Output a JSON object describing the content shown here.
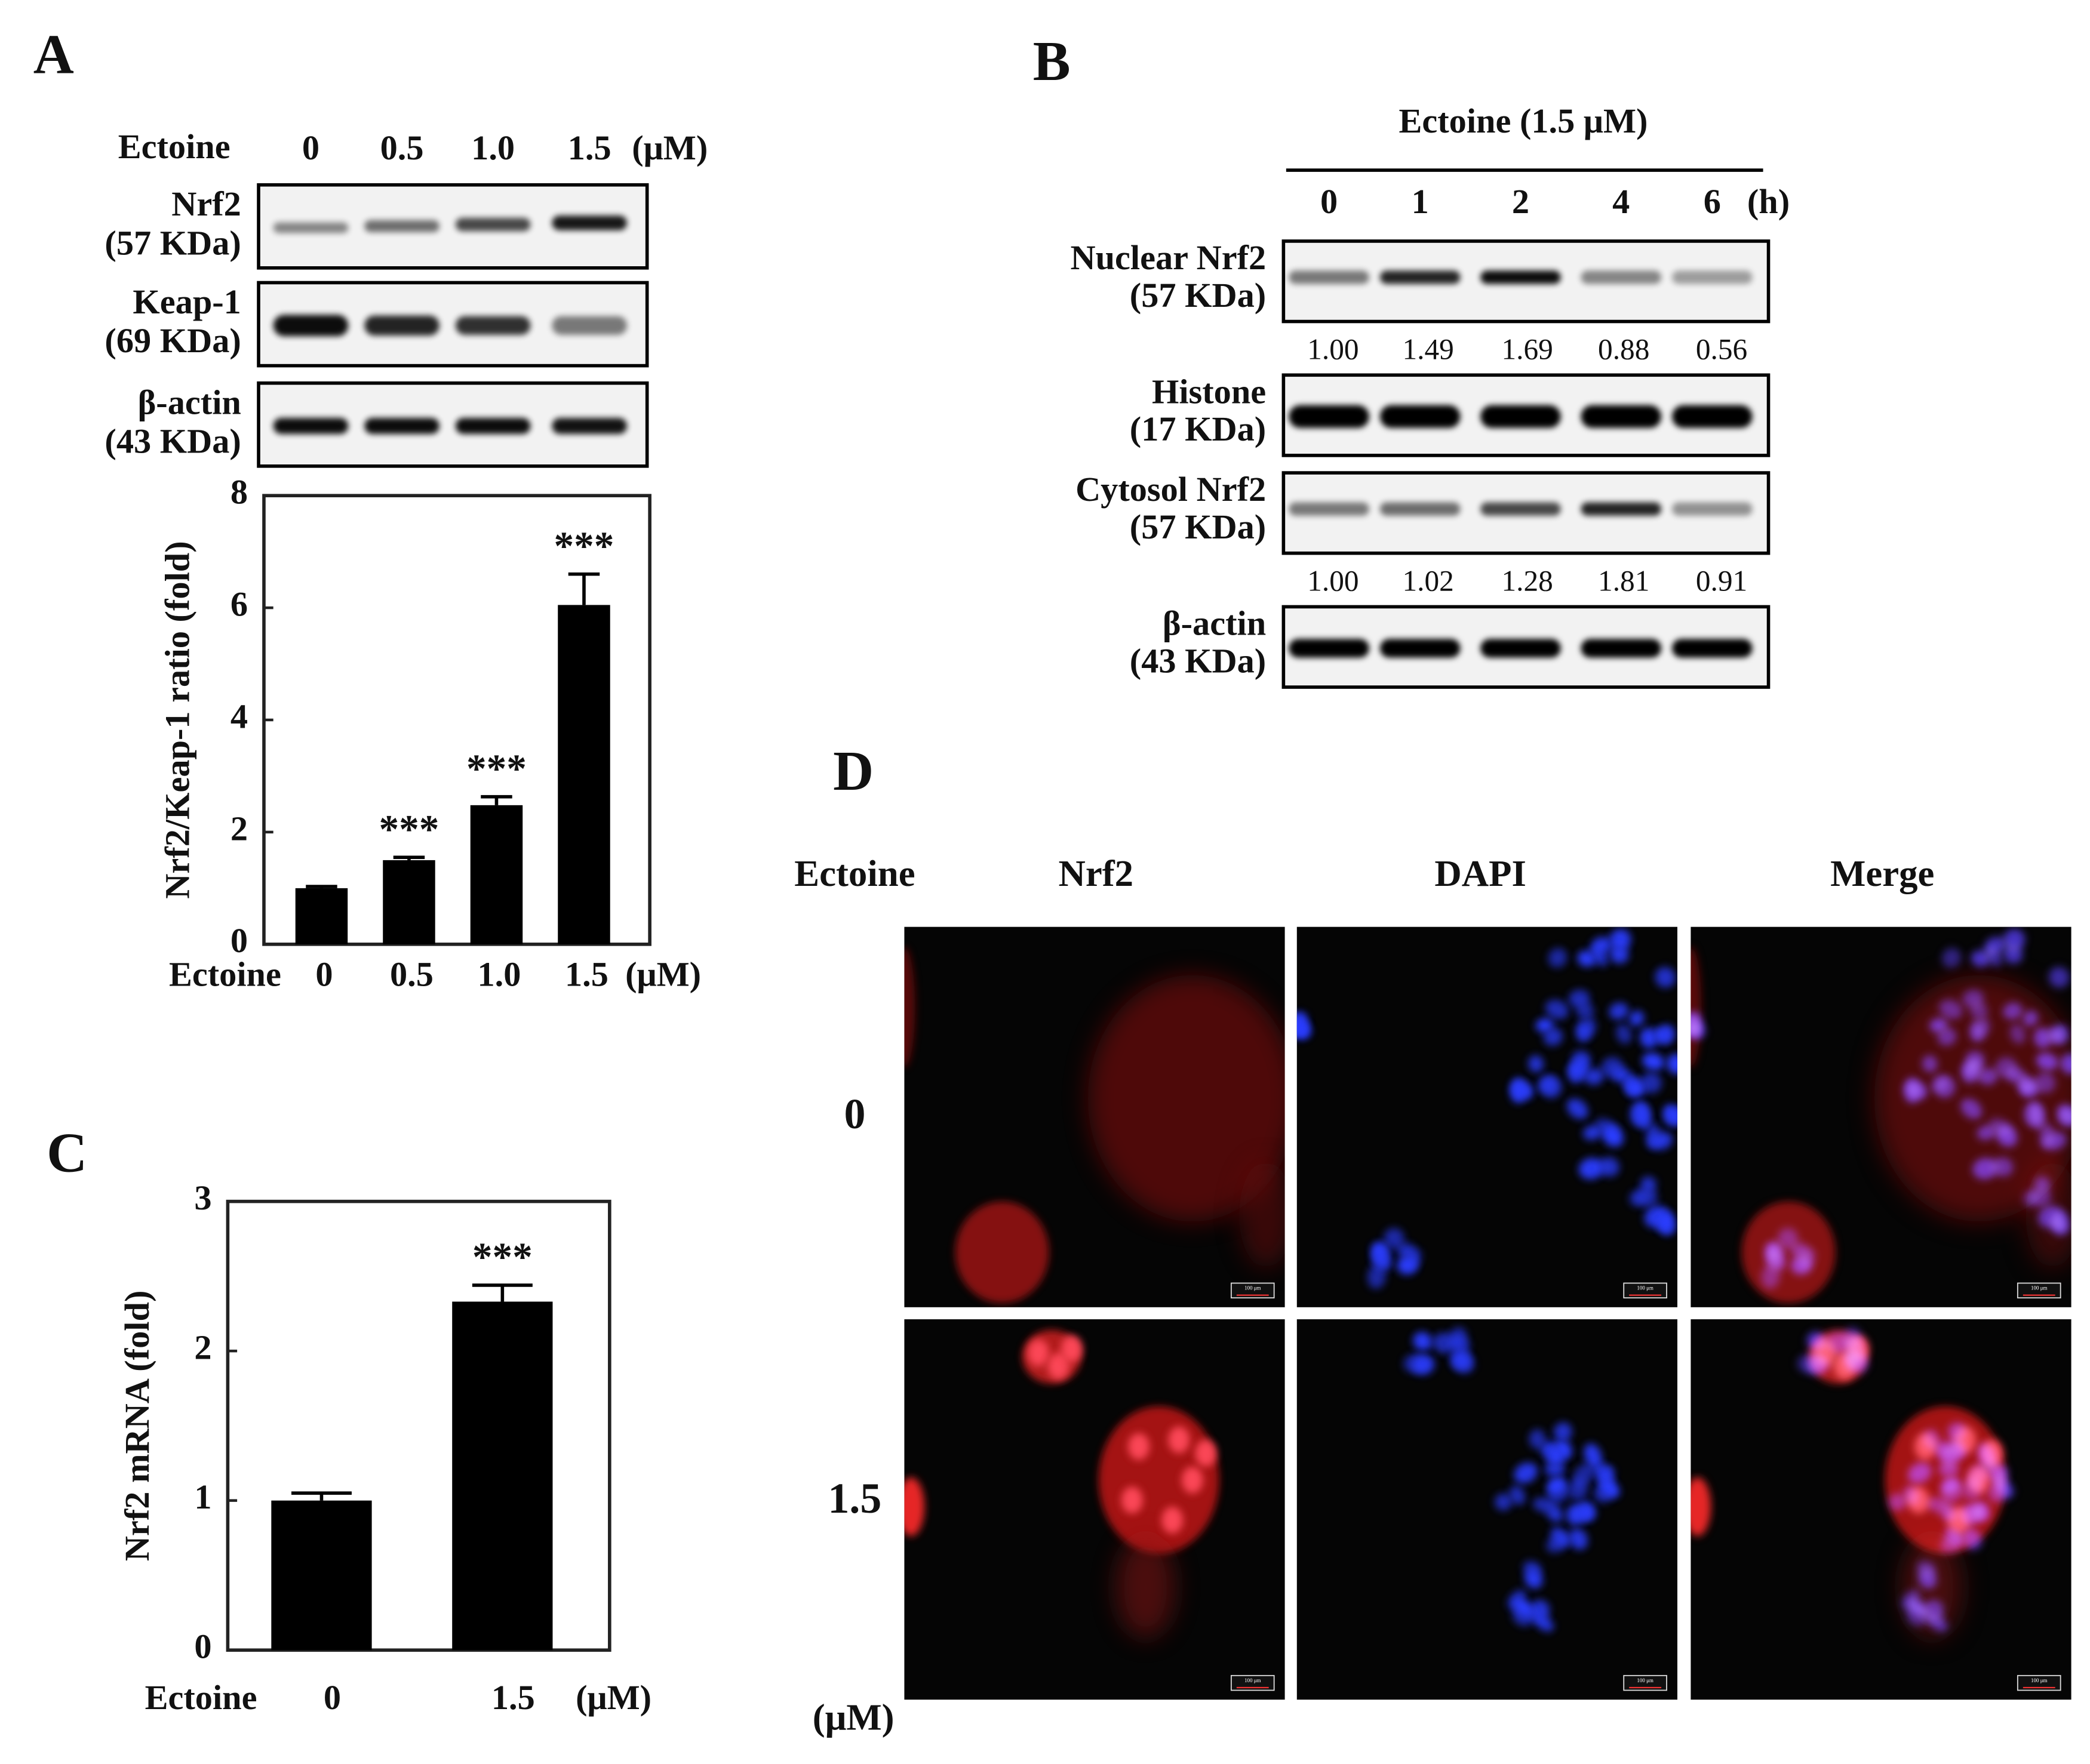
{
  "panel_labels": [
    "A",
    "B",
    "C",
    "D"
  ],
  "panel_a": {
    "header": "Ectoine",
    "lanes": [
      "0",
      "0.5",
      "1.0",
      "1.5"
    ],
    "unit": "(μM)",
    "blots": [
      {
        "name": "Nrf2",
        "size": "(57 KDa)"
      },
      {
        "name": "Keap-1",
        "size": "(69 KDa)"
      },
      {
        "name": "β-actin",
        "size": "(43 KDa)"
      }
    ]
  },
  "panel_b": {
    "header": "Ectoine (1.5 μM)",
    "lanes": [
      "0",
      "1",
      "2",
      "4",
      "6"
    ],
    "unit": "(h)",
    "blots": [
      {
        "name": "Nuclear Nrf2",
        "size": "(57 KDa)",
        "quant": [
          "1.00",
          "1.49",
          "1.69",
          "0.88",
          "0.56"
        ]
      },
      {
        "name": "Histone",
        "size": "(17 KDa)"
      },
      {
        "name": "Cytosol Nrf2",
        "size": "(57 KDa)",
        "quant": [
          "1.00",
          "1.02",
          "1.28",
          "1.81",
          "0.91"
        ]
      },
      {
        "name": "β-actin",
        "size": "(43 KDa)"
      }
    ]
  },
  "chart_data": [
    {
      "type": "bar",
      "y_label": "Nrf2/Keap-1 ratio (fold)",
      "x_label": "Ectoine",
      "x_unit": "(μM)",
      "categories": [
        "0",
        "0.5",
        "1.0",
        "1.5"
      ],
      "series": [
        {
          "color": "#000000",
          "values": [
            1.0,
            1.5,
            2.48,
            6.05
          ],
          "errors": [
            0.03,
            0.05,
            0.15,
            0.55
          ]
        }
      ],
      "annotations": [
        null,
        "***",
        "***",
        "***"
      ],
      "ylim": [
        0,
        8
      ],
      "yticks": [
        0,
        2,
        4,
        6,
        8
      ]
    },
    {
      "type": "bar",
      "y_label": "Nrf2 mRNA (fold)",
      "x_label": "Ectoine",
      "x_unit": "(μM)",
      "categories": [
        "0",
        "1.5"
      ],
      "series": [
        {
          "color": "#000000",
          "values": [
            1.0,
            2.33
          ],
          "errors": [
            0.05,
            0.11
          ]
        }
      ],
      "annotations": [
        null,
        "***"
      ],
      "ylim": [
        0,
        3
      ],
      "yticks": [
        0,
        1,
        2,
        3
      ]
    }
  ],
  "panel_d": {
    "row_header": "Ectoine",
    "columns": [
      "Nrf2",
      "DAPI",
      "Merge"
    ],
    "rows": [
      "0",
      "1.5"
    ],
    "unit": "(μM)",
    "scale_bar": "100 μm"
  }
}
